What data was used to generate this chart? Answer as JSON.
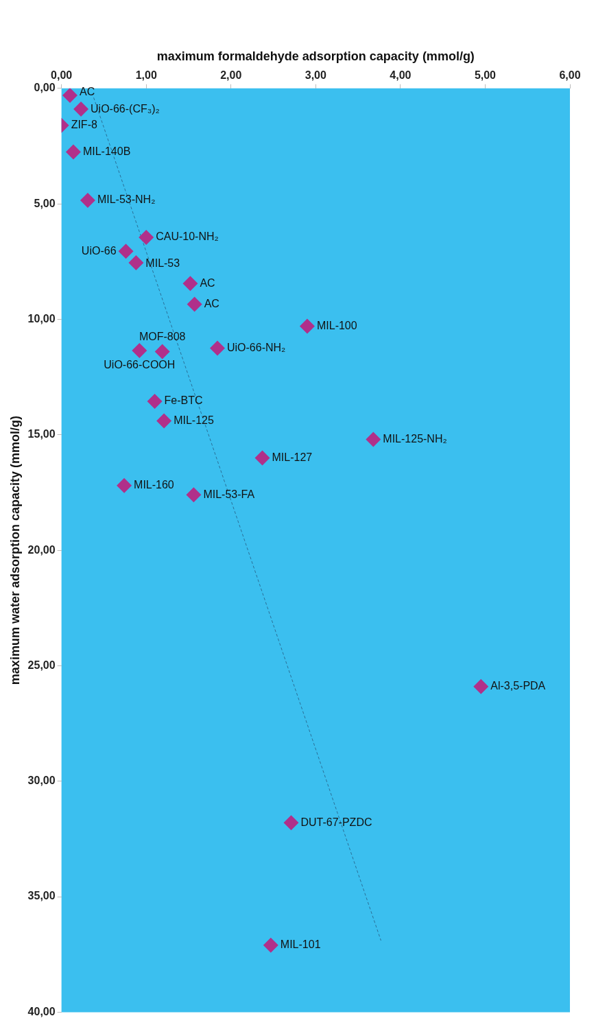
{
  "chart_data": {
    "type": "scatter",
    "xlabel": "maximum formaldehyde adsorption capacity (mmol/g)",
    "ylabel": "maximum water adsorption capacity (mmol/g)",
    "xlim": [
      0,
      6
    ],
    "ylim": [
      40,
      0
    ],
    "xticks": [
      {
        "value": 0,
        "label": "0,00"
      },
      {
        "value": 1,
        "label": "1,00"
      },
      {
        "value": 2,
        "label": "2,00"
      },
      {
        "value": 3,
        "label": "3,00"
      },
      {
        "value": 4,
        "label": "4,00"
      },
      {
        "value": 5,
        "label": "5,00"
      },
      {
        "value": 6,
        "label": "6,00"
      }
    ],
    "yticks": [
      {
        "value": 0,
        "label": "0,00"
      },
      {
        "value": 5,
        "label": "5,00"
      },
      {
        "value": 10,
        "label": "10,00"
      },
      {
        "value": 15,
        "label": "15,00"
      },
      {
        "value": 20,
        "label": "20,00"
      },
      {
        "value": 25,
        "label": "25,00"
      },
      {
        "value": 30,
        "label": "30,00"
      },
      {
        "value": 35,
        "label": "35,00"
      },
      {
        "value": 40,
        "label": "40,00"
      }
    ],
    "grid": false,
    "marker": "diamond",
    "series": [
      {
        "color": "#b0308a",
        "x": [
          0.1,
          0.23,
          0.0,
          0.14,
          0.31,
          1.0,
          0.76,
          0.88,
          1.52,
          1.57,
          2.9,
          1.84,
          0.92,
          1.19,
          1.1,
          1.21,
          3.68,
          2.37,
          1.56,
          0.74,
          4.95,
          2.71,
          2.47
        ],
        "values": [
          0.3,
          0.9,
          1.6,
          2.75,
          4.85,
          6.45,
          7.05,
          7.55,
          8.45,
          9.35,
          10.3,
          11.25,
          11.35,
          11.4,
          13.55,
          14.4,
          15.2,
          16.0,
          17.6,
          17.2,
          25.9,
          31.8,
          37.1
        ]
      },
      {
        "type": "line",
        "line_style": "dashed",
        "marker": "none",
        "color": "#2a6f97",
        "x": [
          0.38,
          3.77
        ],
        "values": [
          0.4,
          36.9
        ]
      }
    ],
    "annotations": [
      {
        "text": "AC",
        "x": 0.1,
        "y": 0.3
      },
      {
        "text": "UiO-66-(CF₃)₂",
        "x": 0.23,
        "y": 0.9
      },
      {
        "text": "ZIF-8",
        "x": 0.0,
        "y": 1.6
      },
      {
        "text": "MIL-140B",
        "x": 0.14,
        "y": 2.75
      },
      {
        "text": "MIL-53-NH₂",
        "x": 0.31,
        "y": 4.85
      },
      {
        "text": "CAU-10-NH₂",
        "x": 1.0,
        "y": 6.45
      },
      {
        "text": "UiO-66",
        "x": 0.76,
        "y": 7.05
      },
      {
        "text": "MIL-53",
        "x": 0.88,
        "y": 7.55
      },
      {
        "text": "AC",
        "x": 1.52,
        "y": 8.45
      },
      {
        "text": "AC",
        "x": 1.57,
        "y": 9.35
      },
      {
        "text": "MIL-100",
        "x": 2.9,
        "y": 10.3
      },
      {
        "text": "UiO-66-NH₂",
        "x": 1.84,
        "y": 11.25
      },
      {
        "text": "UiO-66-COOH",
        "x": 0.92,
        "y": 11.35
      },
      {
        "text": "MOF-808",
        "x": 1.19,
        "y": 11.4
      },
      {
        "text": "Fe-BTC",
        "x": 1.1,
        "y": 13.55
      },
      {
        "text": "MIL-125",
        "x": 1.21,
        "y": 14.4
      },
      {
        "text": "MIL-125-NH₂",
        "x": 3.68,
        "y": 15.2
      },
      {
        "text": "MIL-127",
        "x": 2.37,
        "y": 16.0
      },
      {
        "text": "MIL-53-FA",
        "x": 1.56,
        "y": 17.6
      },
      {
        "text": "MIL-160",
        "x": 0.74,
        "y": 17.2
      },
      {
        "text": "Al-3,5-PDA",
        "x": 4.95,
        "y": 25.9
      },
      {
        "text": "DUT-67-PZDC",
        "x": 2.71,
        "y": 31.8
      },
      {
        "text": "MIL-101",
        "x": 2.47,
        "y": 37.1
      }
    ]
  }
}
